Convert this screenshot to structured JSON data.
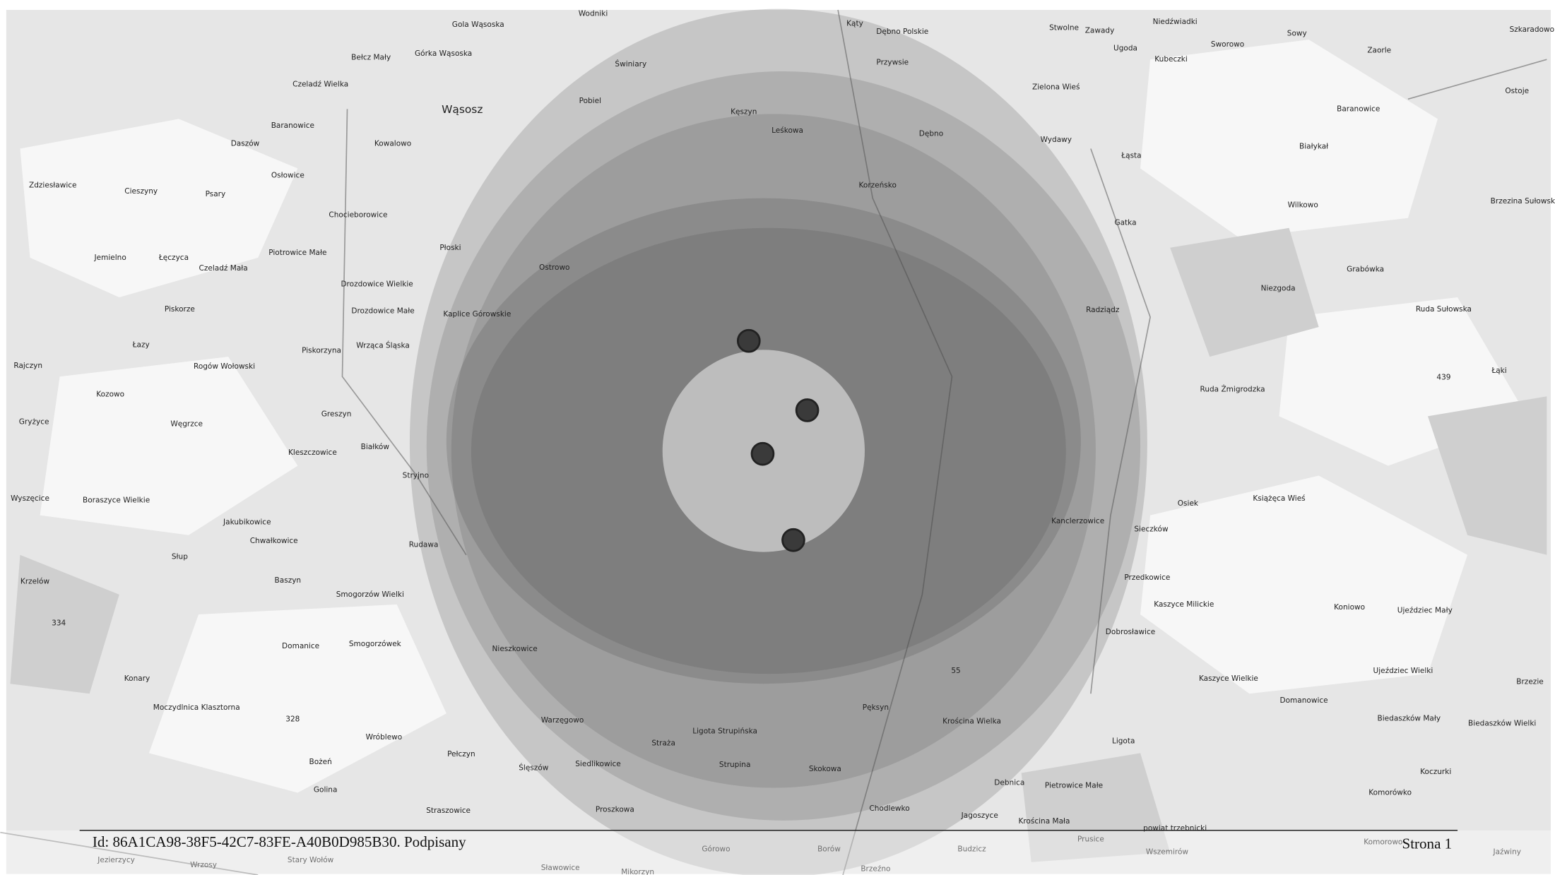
{
  "map": {
    "labels": [
      "Gola Wąsoska",
      "Wodniki",
      "Kąty",
      "Dębno Polskie",
      "Stwolne",
      "Zawady",
      "Niedźwiadki",
      "Sowy",
      "Szkaradowo",
      "Bełcz Mały",
      "Górka Wąsoska",
      "Świniary",
      "Przywsie",
      "Ugoda",
      "Sworowo",
      "Kubeczki",
      "Zaorle",
      "Czeladź Wielka",
      "Wąsosz",
      "Pobiel",
      "Zielona Wieś",
      "Ostoje",
      "Baranowice",
      "Kęszyn",
      "Baranowice",
      "Leśkowa",
      "Dębno",
      "Wydawy",
      "Białykał",
      "Daszów",
      "Kowalowo",
      "Łąsta",
      "Osłowice",
      "Korzeńsko",
      "Zdziesławice",
      "Cieszyny",
      "Psary",
      "Wilkowo",
      "Brzezina Sułowska",
      "Chocieborowice",
      "Gatka",
      "Płoski",
      "Piotrowice Małe",
      "Jemielno",
      "Łęczyca",
      "Czeladź Mała",
      "Ostrowo",
      "Grabówka",
      "Drozdowice Wielkie",
      "Niezgoda",
      "Piskorze",
      "Drozdowice Małe",
      "Kaplice Górowskie",
      "Radziądz",
      "Ruda Sułowska",
      "Łazy",
      "Wrząca Śląska",
      "Piskorzyna",
      "Rajczyn",
      "Rogów Wołowski",
      "Łąki",
      "Kozowo",
      "Ruda Żmigrodzka",
      "Greszyn",
      "Węgrzce",
      "Gryżyce",
      "Kleszczowice",
      "Białków",
      "Stryjno",
      "Wyszęcice",
      "Boraszyce Wielkie",
      "Osiek",
      "Książęca Wieś",
      "Jakubikowice",
      "Kanclerzowice",
      "Chwałkowice",
      "Sieczków",
      "Rudawa",
      "Słup",
      "Przedkowice",
      "Krzelów",
      "Baszyn",
      "Smogorzów Wielki",
      "Kaszyce Milickie",
      "Koniowo",
      "Ujeździec Mały",
      "334",
      "Dobrosławice",
      "Domanice",
      "Smogorzówek",
      "Nieszkowice",
      "Konary",
      "Kaszyce Wielkie",
      "Ujeździec Wielki",
      "Brzezie",
      "Moczydlnica Klasztorna",
      "Domanowice",
      "Biedaszków Mały",
      "Biedaszków Wielki",
      "328",
      "Warzęgowo",
      "Pęksyn",
      "Krościna Wielka",
      "Wróblewo",
      "Ligota Strupińska",
      "Ligota",
      "Bożeń",
      "Pełczyn",
      "Straża",
      "Siedlikowice",
      "Ślęszów",
      "Strupina",
      "Skokowa",
      "Koczurki",
      "Golina",
      "Pietrowice Małe",
      "Debnica",
      "Komorówko",
      "Straszowice",
      "Proszkowa",
      "Chodlewko",
      "Jagoszyce",
      "Krościna Mała",
      "powiat trzebnicki",
      "Prusice",
      "Górowo",
      "Borów",
      "Budzicz",
      "Wszemirów",
      "Komorowo",
      "Jaźwiny",
      "Jezierzycy",
      "Wrzosy",
      "Stary Wołów",
      "Sławowice",
      "Mikorzyn",
      "Brzeźno",
      "439",
      "55"
    ]
  },
  "footer": {
    "id": "Id: 86A1CA98-38F5-42C7-83FE-A40B0D985B30. Podpisany",
    "page": "Strona 1"
  }
}
